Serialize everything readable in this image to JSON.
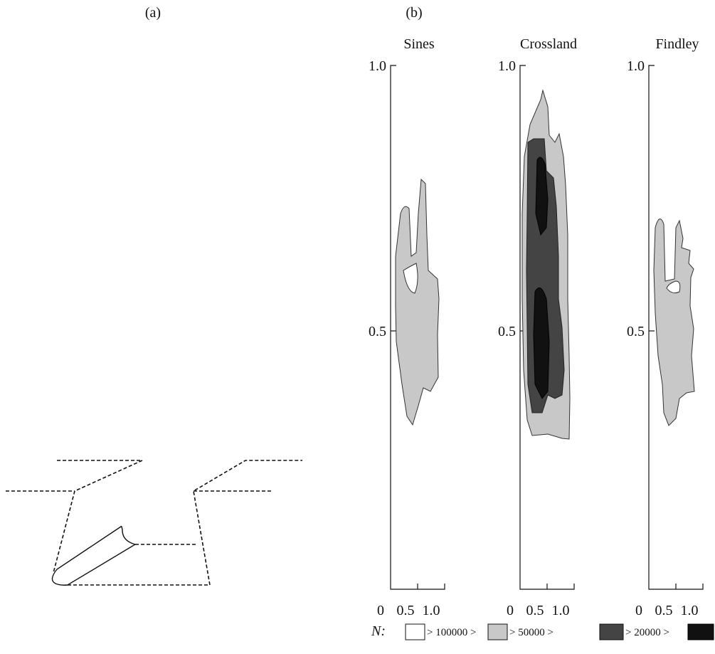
{
  "panels": [
    "(a)",
    "(b)"
  ],
  "plots": [
    {
      "title": "Sines"
    },
    {
      "title": "Crossland"
    },
    {
      "title": "Findley"
    }
  ],
  "y_ticks": [
    "1.0",
    "0.5"
  ],
  "x_ticks": [
    "0",
    "0.5",
    "1.0"
  ],
  "legend": {
    "symbol": "N:",
    "entries": [
      "> 100000 >",
      "> 50000 >",
      "> 20000 >"
    ]
  }
}
